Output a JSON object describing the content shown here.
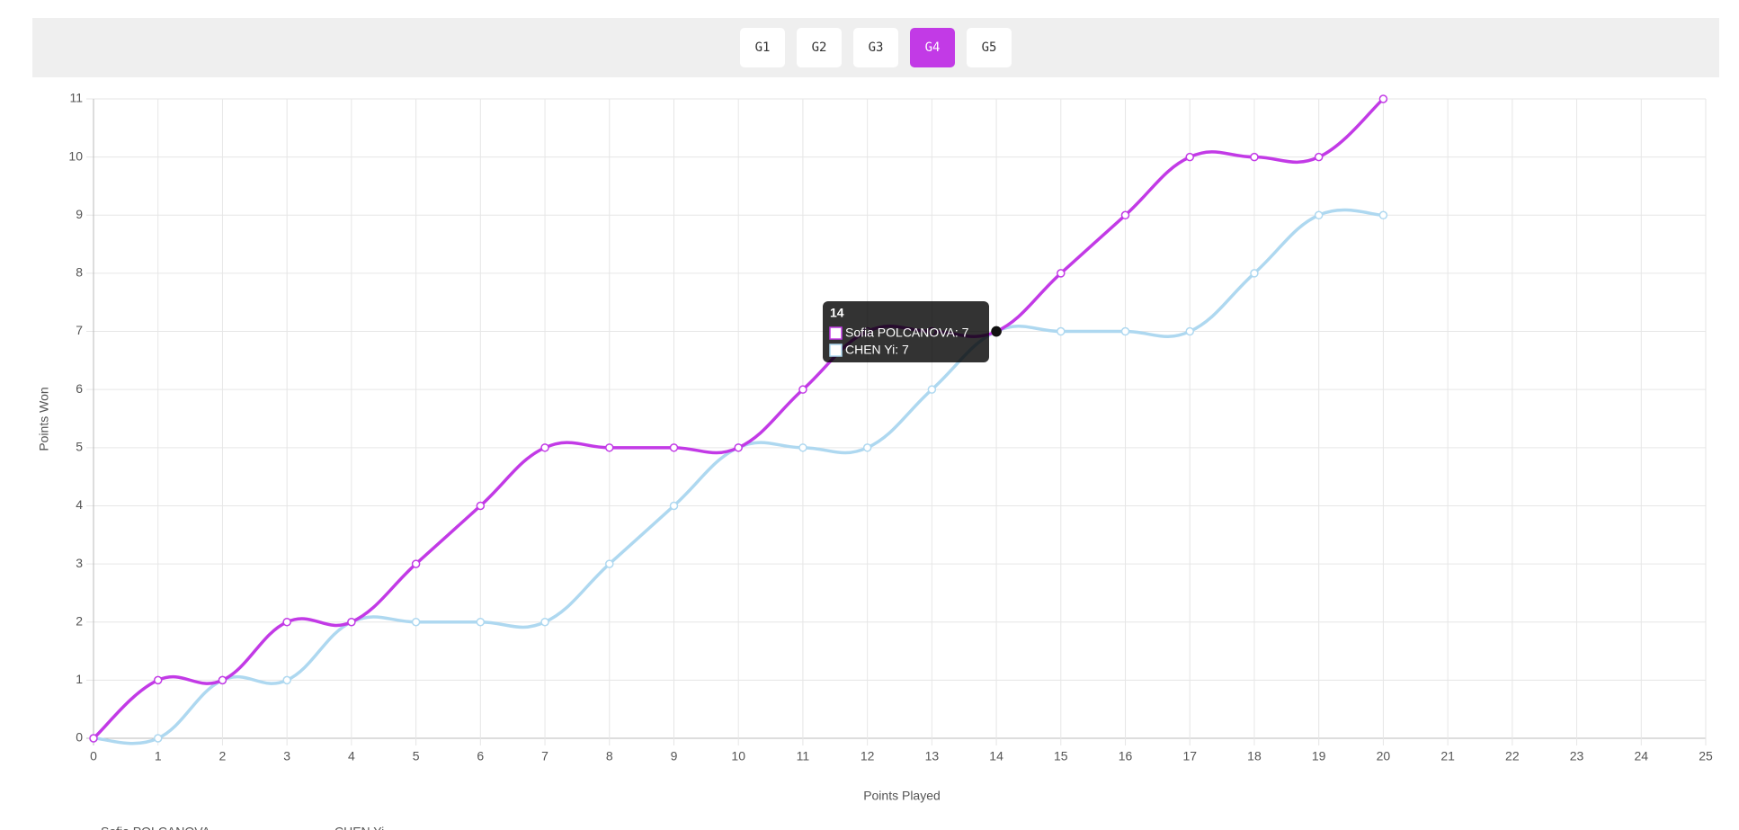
{
  "tabs": [
    "G1",
    "G2",
    "G3",
    "G4",
    "G5"
  ],
  "active_tab": "G4",
  "chart_data": {
    "type": "line",
    "x_label": "Points Played",
    "y_label": "Points Won",
    "x": [
      0,
      1,
      2,
      3,
      4,
      5,
      6,
      7,
      8,
      9,
      10,
      11,
      12,
      13,
      14,
      15,
      16,
      17,
      18,
      19,
      20
    ],
    "series": [
      {
        "name": "Sofia POLCANOVA",
        "color": "#c23ae6",
        "values": [
          0,
          1,
          1,
          2,
          2,
          3,
          4,
          5,
          5,
          5,
          5,
          6,
          7,
          7,
          7,
          8,
          9,
          10,
          10,
          10,
          11
        ]
      },
      {
        "name": "CHEN Yi",
        "color": "#aed8f0",
        "values": [
          0,
          0,
          1,
          1,
          2,
          2,
          2,
          2,
          3,
          4,
          5,
          5,
          5,
          6,
          7,
          7,
          7,
          7,
          8,
          9,
          9
        ]
      }
    ],
    "xlim": [
      0,
      25
    ],
    "xticks": [
      0,
      1,
      2,
      3,
      4,
      5,
      6,
      7,
      8,
      9,
      10,
      11,
      12,
      13,
      14,
      15,
      16,
      17,
      18,
      19,
      20,
      21,
      22,
      23,
      24,
      25
    ],
    "ylim": [
      0,
      11
    ],
    "yticks": [
      0,
      1,
      2,
      3,
      4,
      5,
      6,
      7,
      8,
      9,
      10,
      11
    ],
    "grid": true,
    "tooltip": {
      "title": "14",
      "lines": [
        "Sofia POLCANOVA: 7",
        "CHEN Yi: 7"
      ]
    }
  }
}
